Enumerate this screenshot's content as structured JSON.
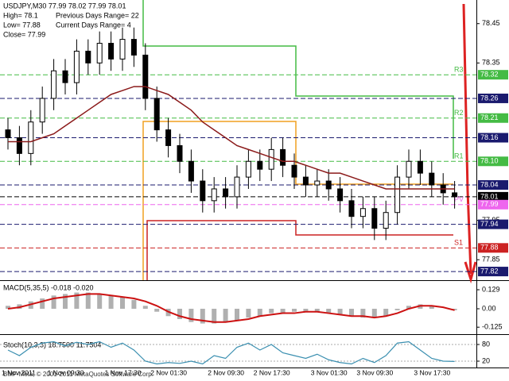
{
  "chart_data": [
    {
      "type": "candlestick",
      "title": "USDJPY,M30  77.99 78.02 77.99 78.01",
      "annotations": [
        "High= 78.1",
        "Previous Days Range= 22",
        "Low= 77.88",
        "Current Days Range= 4",
        "Close= 77.99"
      ],
      "categories": [
        "1 Nov 2011",
        null,
        null,
        null,
        "1 Nov 09:30",
        null,
        null,
        null,
        null,
        "1 Nov 17:30",
        null,
        null,
        null,
        "2 Nov 01:30",
        null,
        null,
        null,
        null,
        "2 Nov 09:30",
        null,
        null,
        null,
        "2 Nov 17:30",
        null,
        null,
        null,
        null,
        "3 Nov 01:30",
        null,
        null,
        null,
        "3 Nov 09:30",
        null,
        null,
        null,
        null,
        "3 Nov 17:30",
        null,
        null,
        null
      ],
      "open": [
        78.18,
        78.16,
        78.12,
        78.2,
        78.26,
        78.33,
        78.3,
        78.38,
        78.35,
        78.4,
        78.36,
        78.41,
        78.37,
        78.26,
        78.18,
        78.14,
        78.1,
        78.05,
        78.0,
        78.03,
        78.01,
        78.06,
        78.1,
        78.08,
        78.13,
        78.09,
        78.06,
        78.04,
        78.05,
        78.03,
        78.0,
        77.96,
        77.98,
        77.93,
        77.97,
        78.06,
        78.1,
        78.07,
        78.04,
        78.02
      ],
      "high": [
        78.21,
        78.19,
        78.23,
        78.29,
        78.36,
        78.36,
        78.41,
        78.41,
        78.43,
        78.43,
        78.44,
        78.44,
        78.4,
        78.29,
        78.21,
        78.17,
        78.13,
        78.08,
        78.06,
        78.06,
        78.09,
        78.13,
        78.13,
        78.16,
        78.16,
        78.12,
        78.09,
        78.08,
        78.08,
        78.06,
        78.03,
        78.01,
        78.01,
        78.0,
        78.09,
        78.13,
        78.13,
        78.1,
        78.07,
        78.05
      ],
      "low": [
        78.13,
        78.09,
        78.09,
        78.17,
        78.23,
        78.27,
        78.27,
        78.32,
        78.32,
        78.33,
        78.33,
        78.34,
        78.23,
        78.15,
        78.11,
        78.07,
        78.02,
        77.97,
        77.97,
        77.98,
        77.98,
        78.03,
        78.05,
        78.05,
        78.06,
        78.03,
        78.01,
        78.01,
        78.0,
        77.97,
        77.93,
        77.93,
        77.9,
        77.9,
        77.94,
        78.03,
        78.04,
        78.01,
        77.99,
        77.98
      ],
      "close": [
        78.16,
        78.12,
        78.2,
        78.26,
        78.33,
        78.3,
        78.38,
        78.35,
        78.4,
        78.36,
        78.41,
        78.37,
        78.26,
        78.18,
        78.14,
        78.1,
        78.05,
        78.0,
        78.03,
        78.01,
        78.06,
        78.1,
        78.08,
        78.13,
        78.09,
        78.06,
        78.04,
        78.05,
        78.03,
        78.0,
        77.96,
        77.98,
        77.93,
        77.97,
        78.06,
        78.1,
        78.07,
        78.04,
        78.02,
        78.01
      ],
      "ma": {
        "color": "#8b1a1a",
        "values": [
          78.15,
          78.15,
          78.15,
          78.16,
          78.17,
          78.19,
          78.21,
          78.23,
          78.25,
          78.27,
          78.28,
          78.29,
          78.29,
          78.28,
          78.27,
          78.25,
          78.23,
          78.2,
          78.18,
          78.16,
          78.14,
          78.13,
          78.12,
          78.11,
          78.1,
          78.1,
          78.09,
          78.08,
          78.07,
          78.07,
          78.06,
          78.05,
          78.04,
          78.03,
          78.03,
          78.03,
          78.03,
          78.03,
          78.03,
          78.03
        ]
      },
      "ylim": [
        77.8,
        78.51
      ],
      "yticks": [
        78.45,
        78.35,
        77.95,
        77.85
      ],
      "levels": [
        {
          "value": 78.32,
          "label": "78.32",
          "tag": "R3",
          "color": "#44bb44"
        },
        {
          "value": 78.26,
          "label": "78.26",
          "color": "#1a1a6e"
        },
        {
          "value": 78.21,
          "label": "78.21",
          "tag": "R2",
          "color": "#44bb44"
        },
        {
          "value": 78.16,
          "label": "78.16",
          "color": "#1a1a6e"
        },
        {
          "value": 78.1,
          "label": "78.10",
          "tag": "R1",
          "color": "#44bb44"
        },
        {
          "value": 78.04,
          "label": "78.04",
          "color": "#1a1a6e"
        },
        {
          "value": 78.01,
          "label": "78.01",
          "color": "#000000"
        },
        {
          "value": 77.99,
          "label": "77.99",
          "tag": "PV",
          "color": "#ee66ee"
        },
        {
          "value": 77.94,
          "label": "77.94",
          "color": "#1a1a6e"
        },
        {
          "value": 77.88,
          "label": "77.88",
          "tag": "S1",
          "color": "#cc2222"
        },
        {
          "value": 77.82,
          "label": "77.82",
          "color": "#1a1a6e"
        }
      ]
    },
    {
      "type": "macd",
      "title": "MACD(5,35,5) -0.018 -0.020",
      "values": [
        0.02,
        0.03,
        0.05,
        0.07,
        0.09,
        0.1,
        0.11,
        0.11,
        0.1,
        0.09,
        0.08,
        0.06,
        0.02,
        -0.02,
        -0.05,
        -0.07,
        -0.09,
        -0.1,
        -0.1,
        -0.09,
        -0.08,
        -0.06,
        -0.05,
        -0.03,
        -0.03,
        -0.02,
        -0.02,
        -0.02,
        -0.03,
        -0.04,
        -0.05,
        -0.06,
        -0.06,
        -0.05,
        -0.01,
        0.02,
        0.03,
        0.02,
        0.0,
        -0.01
      ],
      "signal": {
        "color": "#cc1111",
        "values": [
          0.0,
          0.01,
          0.03,
          0.05,
          0.07,
          0.08,
          0.09,
          0.1,
          0.1,
          0.09,
          0.08,
          0.07,
          0.05,
          0.02,
          -0.02,
          -0.05,
          -0.07,
          -0.08,
          -0.09,
          -0.09,
          -0.08,
          -0.07,
          -0.05,
          -0.04,
          -0.03,
          -0.03,
          -0.02,
          -0.02,
          -0.03,
          -0.04,
          -0.05,
          -0.05,
          -0.06,
          -0.05,
          -0.03,
          0.0,
          0.02,
          0.02,
          0.01,
          -0.01
        ]
      },
      "color": "#b0b0b0",
      "ylim": [
        -0.167,
        0.183
      ],
      "yticks": [
        0.129,
        {
          "value": 0,
          "label": "0.00"
        },
        -0.125
      ]
    },
    {
      "type": "stoch",
      "title": "Stoch(10,3,3) 18.7500 11.7504",
      "values": [
        60,
        40,
        70,
        85,
        90,
        75,
        88,
        80,
        90,
        70,
        85,
        60,
        20,
        10,
        15,
        12,
        20,
        10,
        40,
        30,
        70,
        85,
        60,
        80,
        50,
        40,
        30,
        45,
        25,
        15,
        10,
        30,
        15,
        40,
        85,
        90,
        60,
        30,
        20,
        19
      ],
      "color": "#3a8fb0",
      "ylim": [
        0,
        100
      ],
      "yticks": [
        80,
        20
      ]
    }
  ],
  "footer": "BMF-Meta, © 2001-2011 MetaQuotes Software Corp."
}
